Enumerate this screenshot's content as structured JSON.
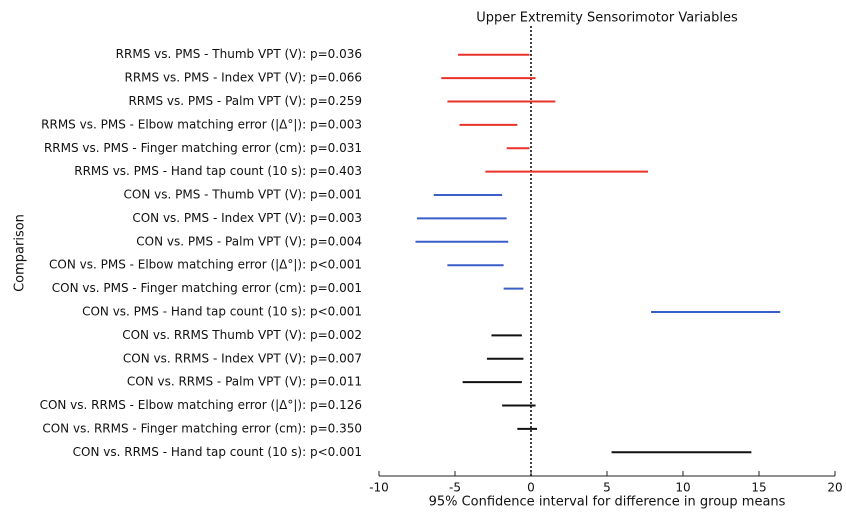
{
  "chart_data": {
    "type": "interval",
    "title": "Upper Extremity Sensorimotor Variables",
    "x_label": "95% Confidence interval for difference in group means",
    "y_label": "Comparison",
    "categories": [
      "RRMS vs. PMS - Thumb VPT (V): p=0.036",
      "RRMS vs. PMS - Index VPT (V): p=0.066",
      "RRMS vs. PMS - Palm VPT (V): p=0.259",
      "RRMS vs. PMS - Elbow matching error (|Δ°|): p=0.003",
      "RRMS vs. PMS - Finger matching error (cm): p=0.031",
      "RRMS vs. PMS - Hand tap count (10 s): p=0.403",
      "CON vs. PMS - Thumb VPT (V): p=0.001",
      "CON vs. PMS - Index VPT (V): p=0.003",
      "CON vs. PMS - Palm VPT (V): p=0.004",
      "CON vs. PMS - Elbow matching error (|Δ°|): p<0.001",
      "CON vs. PMS - Finger matching error (cm): p=0.001",
      "CON vs. PMS - Hand tap count (10 s): p<0.001",
      "CON vs. RRMS Thumb VPT (V): p=0.002",
      "CON vs. RRMS - Index VPT (V): p=0.007",
      "CON vs. RRMS - Palm VPT (V): p=0.011",
      "CON vs. RRMS - Elbow matching error (|Δ°|): p=0.126",
      "CON vs. RRMS - Finger matching error (cm): p=0.350",
      "CON vs. RRMS - Hand tap count (10 s): p<0.001"
    ],
    "low": [
      -4.8,
      -5.9,
      -5.5,
      -4.7,
      -1.6,
      -3.0,
      -6.4,
      -7.5,
      -7.6,
      -5.5,
      -1.8,
      7.9,
      -2.6,
      -2.9,
      -4.5,
      -1.9,
      -0.9,
      5.3
    ],
    "high": [
      -0.1,
      0.3,
      1.6,
      -0.9,
      -0.1,
      7.7,
      -1.9,
      -1.6,
      -1.5,
      -1.8,
      -0.5,
      16.4,
      -0.6,
      -0.5,
      -0.6,
      0.3,
      0.4,
      14.5
    ],
    "colors": [
      "#e8322a",
      "#e8322a",
      "#e8322a",
      "#e8322a",
      "#e8322a",
      "#e8322a",
      "#3a5fc8",
      "#3a5fc8",
      "#3a5fc8",
      "#3a5fc8",
      "#3a5fc8",
      "#3a5fc8",
      "#111111",
      "#111111",
      "#111111",
      "#111111",
      "#111111",
      "#111111"
    ],
    "reference_line": 0,
    "xlim": [
      -10,
      20
    ],
    "xticks": [
      -10,
      -5,
      0,
      5,
      10,
      15,
      20
    ]
  }
}
